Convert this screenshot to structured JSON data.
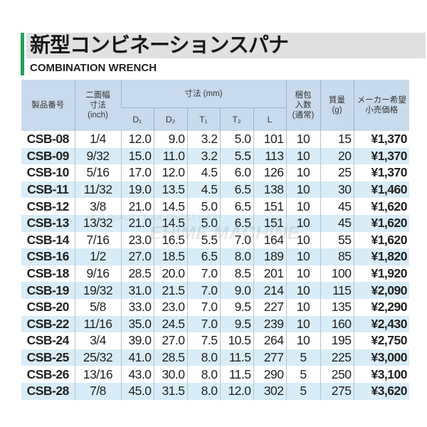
{
  "title": "新型コンビネーションスパナ",
  "subtitle": "COMBINATION WRENCH",
  "watermark": {
    "line1": "HIGH QUALITY TOOL SELECT SHOP",
    "line2": "EHIME MACHINE"
  },
  "colors": {
    "accent": "#1fa25a",
    "header_bg": "#c8daec",
    "row_alt": "#d8edf7"
  },
  "headers": {
    "part": "製品番号",
    "size": "二面幅\n寸法\n(inch)",
    "dims": "寸法 (mm)",
    "d1": "D₁",
    "d2": "D₂",
    "t1": "T₁",
    "t2": "T₂",
    "l": "L",
    "pack": "梱包\n入数\n(通常)",
    "mass": "質量\n(g)",
    "price": "メーカー希望\n小売価格"
  },
  "rows": [
    [
      "CSB-08",
      "1/4",
      "12.0",
      "9.0",
      "3.2",
      "5.0",
      "101",
      "10",
      "15",
      "¥1,370"
    ],
    [
      "CSB-09",
      "9/32",
      "15.0",
      "11.0",
      "3.2",
      "5.5",
      "113",
      "10",
      "20",
      "¥1,370"
    ],
    [
      "CSB-10",
      "5/16",
      "17.0",
      "12.0",
      "4.5",
      "6.0",
      "126",
      "10",
      "25",
      "¥1,370"
    ],
    [
      "CSB-11",
      "11/32",
      "19.0",
      "13.5",
      "4.5",
      "6.5",
      "138",
      "10",
      "30",
      "¥1,460"
    ],
    [
      "CSB-12",
      "3/8",
      "21.0",
      "14.5",
      "5.0",
      "6.5",
      "151",
      "10",
      "45",
      "¥1,620"
    ],
    [
      "CSB-13",
      "13/32",
      "21.0",
      "14.5",
      "5.0",
      "6.5",
      "151",
      "10",
      "45",
      "¥1,620"
    ],
    [
      "CSB-14",
      "7/16",
      "23.0",
      "16.5",
      "5.5",
      "7.0",
      "164",
      "10",
      "55",
      "¥1,620"
    ],
    [
      "CSB-16",
      "1/2",
      "27.0",
      "18.5",
      "6.5",
      "8.0",
      "189",
      "10",
      "85",
      "¥1,820"
    ],
    [
      "CSB-18",
      "9/16",
      "28.5",
      "20.0",
      "7.0",
      "8.5",
      "201",
      "10",
      "100",
      "¥1,920"
    ],
    [
      "CSB-19",
      "19/32",
      "31.0",
      "21.5",
      "7.0",
      "9.0",
      "214",
      "10",
      "115",
      "¥2,090"
    ],
    [
      "CSB-20",
      "5/8",
      "33.0",
      "23.0",
      "7.0",
      "9.5",
      "227",
      "10",
      "135",
      "¥2,290"
    ],
    [
      "CSB-22",
      "11/16",
      "35.0",
      "24.5",
      "7.0",
      "9.5",
      "239",
      "10",
      "160",
      "¥2,430"
    ],
    [
      "CSB-24",
      "3/4",
      "39.0",
      "27.0",
      "7.5",
      "10.5",
      "264",
      "10",
      "195",
      "¥2,750"
    ],
    [
      "CSB-25",
      "25/32",
      "41.0",
      "28.5",
      "8.0",
      "11.5",
      "277",
      "5",
      "225",
      "¥3,000"
    ],
    [
      "CSB-26",
      "13/16",
      "43.0",
      "30.0",
      "8.0",
      "11.5",
      "290",
      "5",
      "250",
      "¥3,100"
    ],
    [
      "CSB-28",
      "7/8",
      "45.0",
      "31.5",
      "8.0",
      "12.0",
      "302",
      "5",
      "275",
      "¥3,620"
    ]
  ]
}
